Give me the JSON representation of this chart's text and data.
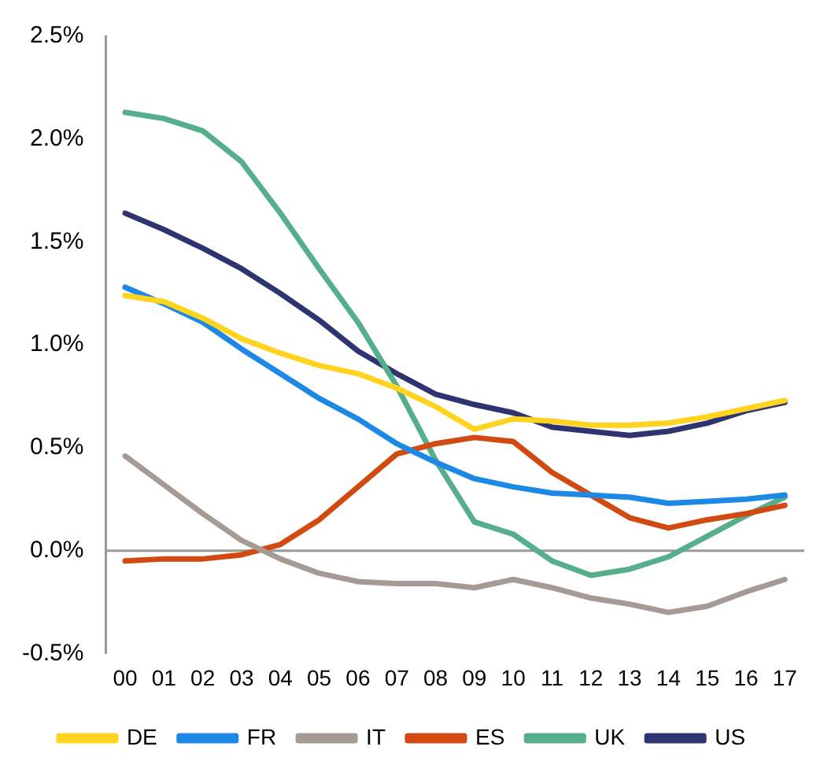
{
  "chart_data": {
    "type": "line",
    "categories": [
      "00",
      "01",
      "02",
      "03",
      "04",
      "05",
      "06",
      "07",
      "08",
      "09",
      "10",
      "11",
      "12",
      "13",
      "14",
      "15",
      "16",
      "17"
    ],
    "series": [
      {
        "name": "DE",
        "color": "#ffd320",
        "values": [
          1.24,
          1.21,
          1.13,
          1.03,
          0.96,
          0.9,
          0.86,
          0.79,
          0.7,
          0.59,
          0.64,
          0.63,
          0.61,
          0.61,
          0.62,
          0.65,
          0.69,
          0.73
        ]
      },
      {
        "name": "FR",
        "color": "#1e88e5",
        "values": [
          1.28,
          1.2,
          1.11,
          0.98,
          0.86,
          0.74,
          0.64,
          0.52,
          0.43,
          0.35,
          0.31,
          0.28,
          0.27,
          0.26,
          0.23,
          0.24,
          0.25,
          0.27
        ]
      },
      {
        "name": "IT",
        "color": "#a69b94",
        "values": [
          0.46,
          0.32,
          0.18,
          0.05,
          -0.04,
          -0.11,
          -0.15,
          -0.16,
          -0.16,
          -0.18,
          -0.14,
          -0.18,
          -0.23,
          -0.26,
          -0.3,
          -0.27,
          -0.2,
          -0.14
        ]
      },
      {
        "name": "ES",
        "color": "#d14a12",
        "values": [
          -0.05,
          -0.04,
          -0.04,
          -0.02,
          0.03,
          0.15,
          0.31,
          0.47,
          0.52,
          0.55,
          0.53,
          0.38,
          0.27,
          0.16,
          0.11,
          0.15,
          0.18,
          0.22
        ]
      },
      {
        "name": "UK",
        "color": "#55ae8c",
        "values": [
          2.13,
          2.1,
          2.04,
          1.89,
          1.64,
          1.37,
          1.11,
          0.8,
          0.44,
          0.14,
          0.08,
          -0.05,
          -0.12,
          -0.09,
          -0.03,
          0.07,
          0.17,
          0.26
        ]
      },
      {
        "name": "US",
        "color": "#2e3470",
        "values": [
          1.64,
          1.56,
          1.47,
          1.37,
          1.25,
          1.12,
          0.97,
          0.86,
          0.76,
          0.71,
          0.67,
          0.6,
          0.58,
          0.56,
          0.58,
          0.62,
          0.68,
          0.72
        ]
      }
    ],
    "ylim": [
      -0.5,
      2.5
    ],
    "yticks": [
      {
        "value": -0.5,
        "label": "-0.5%"
      },
      {
        "value": 0,
        "label": "0.0%"
      },
      {
        "value": 0.5,
        "label": "0.5%"
      },
      {
        "value": 1,
        "label": "1.0%"
      },
      {
        "value": 1.5,
        "label": "1.5%"
      },
      {
        "value": 2,
        "label": "2.0%"
      },
      {
        "value": 2.5,
        "label": "2.5%"
      }
    ],
    "ref_lines": [
      {
        "axis": "y",
        "value": 0,
        "color": "#999999"
      }
    ],
    "legend": "bottom",
    "grid": false,
    "marker": "none",
    "line_style": "solid"
  }
}
